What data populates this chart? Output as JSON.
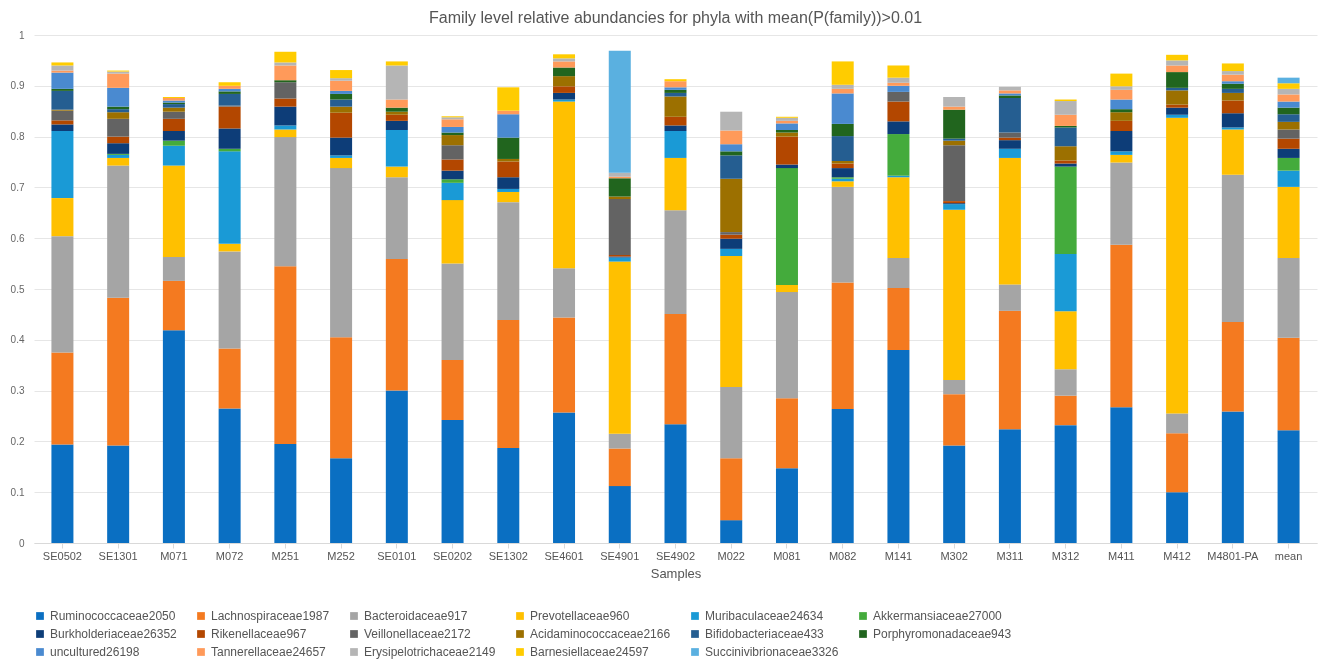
{
  "chart_data": {
    "type": "bar",
    "stacked": true,
    "title": "Family level relative abundancies for phyla with mean(P(family))>0.01",
    "xlabel": "Samples",
    "legend": "bottom",
    "grid": "y",
    "categories": [
      "SE0502",
      "SE1301",
      "M071",
      "M072",
      "M251",
      "M252",
      "SE0101",
      "SE0202",
      "SE1302",
      "SE4601",
      "SE4901",
      "SE4902",
      "M022",
      "M081",
      "M082",
      "M141",
      "M302",
      "M311",
      "M312",
      "M411",
      "M412",
      "M4801-PA",
      "mean"
    ],
    "ylim": [
      0,
      1
    ],
    "yticks": [
      0,
      0.1,
      0.2,
      0.3,
      0.4,
      0.5,
      0.6,
      0.7,
      0.8,
      0.9,
      1
    ],
    "series": [
      {
        "name": "Ruminococcaceae2050",
        "color": "#0a6fc2",
        "values": [
          0.194,
          0.192,
          0.419,
          0.265,
          0.195,
          0.167,
          0.3,
          0.242,
          0.187,
          0.257,
          0.112,
          0.234,
          0.045,
          0.147,
          0.264,
          0.38,
          0.192,
          0.224,
          0.232,
          0.267,
          0.1,
          0.259,
          0.222
        ]
      },
      {
        "name": "Lachnospiraceae1987",
        "color": "#f47a20",
        "values": [
          0.181,
          0.291,
          0.097,
          0.118,
          0.35,
          0.238,
          0.259,
          0.118,
          0.252,
          0.187,
          0.074,
          0.217,
          0.122,
          0.138,
          0.249,
          0.122,
          0.101,
          0.233,
          0.058,
          0.32,
          0.116,
          0.176,
          0.182
        ]
      },
      {
        "name": "Bacteroidaceae917",
        "color": "#a5a5a5",
        "values": [
          0.229,
          0.26,
          0.047,
          0.191,
          0.254,
          0.333,
          0.161,
          0.19,
          0.232,
          0.097,
          0.029,
          0.204,
          0.14,
          0.209,
          0.188,
          0.059,
          0.028,
          0.052,
          0.052,
          0.162,
          0.039,
          0.29,
          0.157
        ]
      },
      {
        "name": "Prevotellaceae960",
        "color": "#ffc000",
        "values": [
          0.075,
          0.015,
          0.18,
          0.015,
          0.015,
          0.02,
          0.021,
          0.125,
          0.02,
          0.328,
          0.339,
          0.103,
          0.258,
          0.014,
          0.011,
          0.159,
          0.335,
          0.249,
          0.114,
          0.015,
          0.582,
          0.089,
          0.14
        ]
      },
      {
        "name": "Muribaculaceae24634",
        "color": "#1a9ad6",
        "values": [
          0.132,
          0.006,
          0.039,
          0.182,
          0.008,
          0.005,
          0.072,
          0.034,
          0.006,
          0.004,
          0.008,
          0.053,
          0.014,
          0,
          0.005,
          0.003,
          0.011,
          0.018,
          0.113,
          0.007,
          0.006,
          0.004,
          0.032
        ]
      },
      {
        "name": "Akkermansiaceae27000",
        "color": "#44ab3c",
        "values": [
          0,
          0.002,
          0.01,
          0.005,
          0,
          0,
          0,
          0.007,
          0,
          0,
          0,
          0,
          0,
          0.23,
          0.003,
          0.082,
          0,
          0,
          0.172,
          0,
          0,
          0,
          0.025
        ]
      },
      {
        "name": "Burkholderiaceae26352",
        "color": "#0d3d78",
        "values": [
          0.013,
          0.021,
          0.019,
          0.04,
          0.037,
          0.035,
          0.018,
          0.017,
          0.023,
          0.013,
          0.002,
          0.011,
          0.02,
          0.007,
          0.018,
          0.025,
          0.002,
          0.017,
          0.006,
          0.04,
          0.014,
          0.028,
          0.018
        ]
      },
      {
        "name": "Rikenellaceae967",
        "color": "#b34700",
        "values": [
          0.008,
          0.013,
          0.024,
          0.043,
          0.016,
          0.049,
          0.012,
          0.022,
          0.031,
          0.013,
          0.003,
          0.017,
          0.008,
          0.055,
          0.009,
          0.039,
          0.004,
          0.005,
          0.006,
          0.02,
          0.006,
          0.025,
          0.02
        ]
      },
      {
        "name": "Veillonellaceae2172",
        "color": "#636363",
        "values": [
          0.019,
          0.035,
          0.014,
          0.002,
          0.032,
          0,
          0,
          0.028,
          0,
          0,
          0.11,
          0,
          0.005,
          0,
          0,
          0.019,
          0.11,
          0.01,
          0,
          0,
          0,
          0,
          0.018
        ]
      },
      {
        "name": "Acidaminococcaceae2166",
        "color": "#9c7000",
        "values": [
          0.002,
          0.013,
          0.008,
          0,
          0,
          0.012,
          0.006,
          0.02,
          0.005,
          0.02,
          0.005,
          0.04,
          0.105,
          0.008,
          0.005,
          0,
          0.009,
          0,
          0.028,
          0.017,
          0.028,
          0.015,
          0.015
        ]
      },
      {
        "name": "Bifidobacteriaceae433",
        "color": "#255e91",
        "values": [
          0.037,
          0.006,
          0.007,
          0.023,
          0,
          0.014,
          0,
          0,
          0,
          0,
          0,
          0.007,
          0.046,
          0,
          0.049,
          0,
          0.004,
          0.068,
          0.037,
          0,
          0.005,
          0.008,
          0.015
        ]
      },
      {
        "name": "Porphyromonadaceae943",
        "color": "#21651e",
        "values": [
          0.004,
          0.005,
          0.003,
          0.005,
          0.004,
          0.011,
          0.008,
          0.005,
          0.042,
          0.017,
          0.036,
          0.006,
          0.008,
          0.005,
          0.024,
          0,
          0.057,
          0.005,
          0.003,
          0.006,
          0.031,
          0.01,
          0.013
        ]
      },
      {
        "name": "uncultured26198",
        "color": "#4a8ad0",
        "values": [
          0.032,
          0.037,
          0.004,
          0.005,
          0,
          0.006,
          0,
          0.011,
          0.046,
          0,
          0,
          0.005,
          0.014,
          0.013,
          0.06,
          0.012,
          0,
          0.004,
          0,
          0.019,
          0,
          0.005,
          0.012
        ]
      },
      {
        "name": "Tannerellaceae24657",
        "color": "#ff9a5a",
        "values": [
          0.004,
          0.028,
          0.005,
          0.006,
          0.029,
          0.02,
          0.016,
          0.015,
          0.007,
          0.012,
          0.003,
          0.012,
          0.027,
          0.005,
          0.009,
          0.006,
          0.006,
          0.006,
          0.022,
          0.019,
          0.013,
          0.013,
          0.014
        ]
      },
      {
        "name": "Erysipelotrichaceae2149",
        "color": "#b5b5b5",
        "values": [
          0.01,
          0.004,
          null,
          null,
          0.006,
          0.005,
          0.067,
          0.004,
          null,
          0.006,
          0.008,
          null,
          0.037,
          0.006,
          0.008,
          0.01,
          0.019,
          0.007,
          0.027,
          0.007,
          0.01,
          0.007,
          0.011
        ]
      },
      {
        "name": "Barnesiellaceae24597",
        "color": "#ffcc00",
        "values": [
          0.006,
          0.002,
          0.002,
          0.007,
          0.021,
          0.016,
          0.008,
          0.002,
          0.046,
          0.008,
          0,
          0.004,
          0,
          0.002,
          0.046,
          0.024,
          0,
          0,
          0.003,
          0.025,
          0.011,
          0.015,
          0.011
        ]
      },
      {
        "name": "Succinivibrionaceae3326",
        "color": "#5ab0e0",
        "values": [
          0,
          0,
          0,
          0,
          0,
          0,
          0,
          0,
          0,
          0,
          0.24,
          0,
          0,
          0,
          0,
          0,
          0,
          0,
          0,
          0,
          0,
          0,
          0.011
        ]
      }
    ]
  }
}
